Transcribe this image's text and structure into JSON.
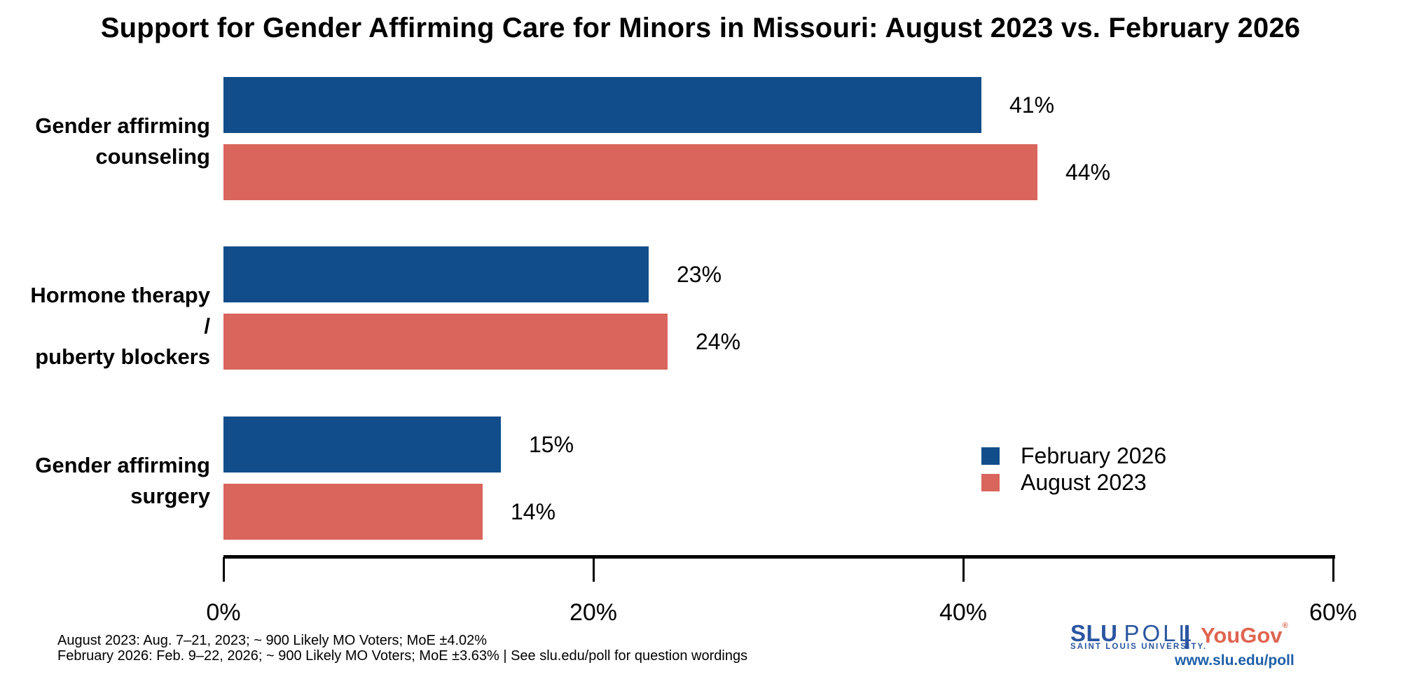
{
  "title": "Support for Gender Affirming Care for Minors in Missouri: August 2023 vs. February 2026",
  "chart_data": {
    "type": "bar",
    "orientation": "horizontal",
    "categories": [
      "Gender affirming counseling",
      "Hormone therapy / puberty blockers",
      "Gender affirming surgery"
    ],
    "category_label_lines": [
      [
        "Gender affirming",
        "counseling"
      ],
      [
        "Hormone therapy /",
        "puberty blockers"
      ],
      [
        "Gender affirming",
        "surgery"
      ]
    ],
    "series": [
      {
        "name": "February 2026",
        "color": "#114D8A",
        "values": [
          41,
          23,
          15
        ],
        "value_labels": [
          "41%",
          "23%",
          "15%"
        ]
      },
      {
        "name": "August 2023",
        "color": "#D9655C",
        "values": [
          44,
          24,
          14
        ],
        "value_labels": [
          "44%",
          "24%",
          "14%"
        ]
      }
    ],
    "xlim": [
      0,
      60
    ],
    "x_ticks": [
      "0%",
      "20%",
      "40%",
      "60%"
    ],
    "x_tick_values": [
      0,
      20,
      40,
      60
    ],
    "grid": false,
    "legend_position": "right-middle",
    "axis_color": "#000000",
    "text_color": "#000000"
  },
  "legend": {
    "items": [
      {
        "label": "February 2026",
        "color": "#114D8A"
      },
      {
        "label": "August 2023",
        "color": "#D9655C"
      }
    ]
  },
  "footnotes": {
    "line1": "August 2023: Aug. 7–21, 2023; ~ 900 Likely MO Voters; MoE ±4.02%",
    "line2": "February 2026: Feb. 9–22, 2026; ~ 900 Likely MO Voters; MoE ±3.63%  |  See slu.edu/poll for question wordings"
  },
  "branding": {
    "slu": "SLU",
    "poll": "POLL",
    "university": "SAINT LOUIS UNIVERSITY.",
    "yougov": "YouGov",
    "registered_mark": "®",
    "url": "www.slu.edu/poll",
    "slu_blue": "#2A55A0",
    "yougov_red": "#E06450",
    "url_blue": "#1F5FA8"
  }
}
